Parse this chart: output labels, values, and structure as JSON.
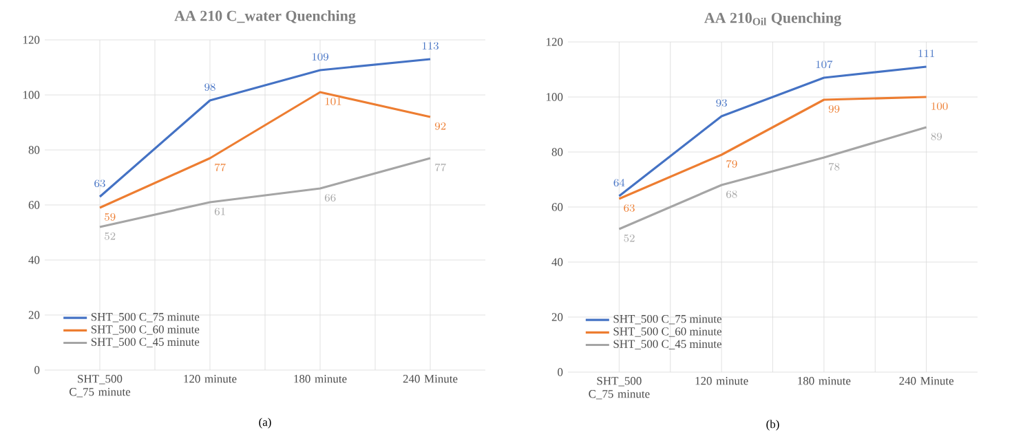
{
  "chart_data": [
    {
      "type": "line",
      "title": "AA 210  C_water Quenching",
      "categories": [
        "SHT_500 C_75 minute",
        "120 minute",
        "180 minute",
        "240 Minute"
      ],
      "series": [
        {
          "name": "SHT_500 C_75 minute",
          "color": "#4472c4",
          "values": [
            63,
            98,
            109,
            113
          ]
        },
        {
          "name": "SHT_500 C_60 minute",
          "color": "#ed7d31",
          "values": [
            59,
            77,
            101,
            92
          ]
        },
        {
          "name": "SHT_500 C_45 minute",
          "color": "#a5a5a5",
          "values": [
            52,
            61,
            66,
            77
          ]
        }
      ],
      "ylim": [
        0,
        120
      ],
      "yticks": [
        0,
        20,
        40,
        60,
        80,
        100,
        120
      ],
      "grid": true,
      "legend": "bottom left",
      "marker": "none",
      "line_style": "solid",
      "data_labels": true,
      "annotations": [
        "(a)"
      ]
    },
    {
      "type": "line",
      "title": "AA 210$_{Oil}$ Quenching",
      "categories": [
        "SHT_500 C_75 minute",
        "120 minute",
        "180 minute",
        "240 Minute"
      ],
      "series": [
        {
          "name": "SHT_500 C_75 minute",
          "color": "#4472c4",
          "values": [
            64,
            93,
            107,
            111
          ]
        },
        {
          "name": "SHT_500 C_60 minute",
          "color": "#ed7d31",
          "values": [
            63,
            79,
            99,
            100
          ]
        },
        {
          "name": "SHT_500 C_45 minute",
          "color": "#a5a5a5",
          "values": [
            52,
            68,
            78,
            89
          ]
        }
      ],
      "ylim": [
        0,
        120
      ],
      "yticks": [
        0,
        20,
        40,
        60,
        80,
        100,
        120
      ],
      "grid": true,
      "legend": "bottom left",
      "marker": "none",
      "line_style": "solid",
      "data_labels": true,
      "annotations": [
        "(b)"
      ]
    }
  ]
}
